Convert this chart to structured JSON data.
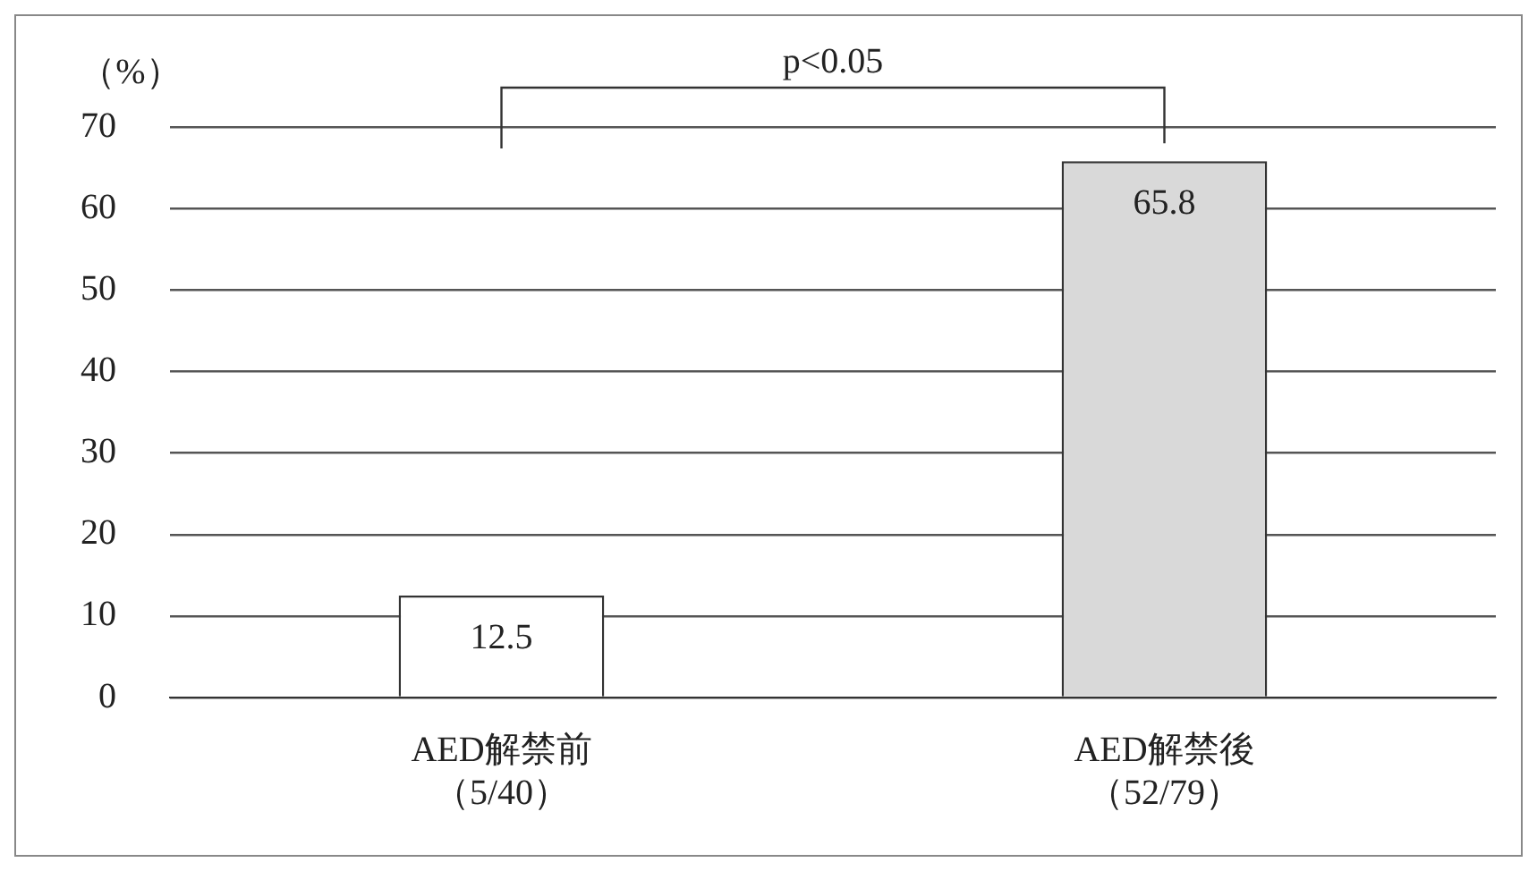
{
  "chart_data": {
    "type": "bar",
    "ylabel": "（%）",
    "categories": [
      "AED解禁前（5/40）",
      "AED解禁後（52/79）"
    ],
    "values": [
      12.5,
      65.8
    ],
    "colors": [
      "#ffffff",
      "#d9d9d9"
    ],
    "ylim": [
      0,
      70
    ],
    "yticks": [
      0,
      10,
      20,
      30,
      40,
      50,
      60,
      70
    ],
    "grid": "y",
    "data_labels": true,
    "annotations": [
      "p<0.05"
    ]
  }
}
